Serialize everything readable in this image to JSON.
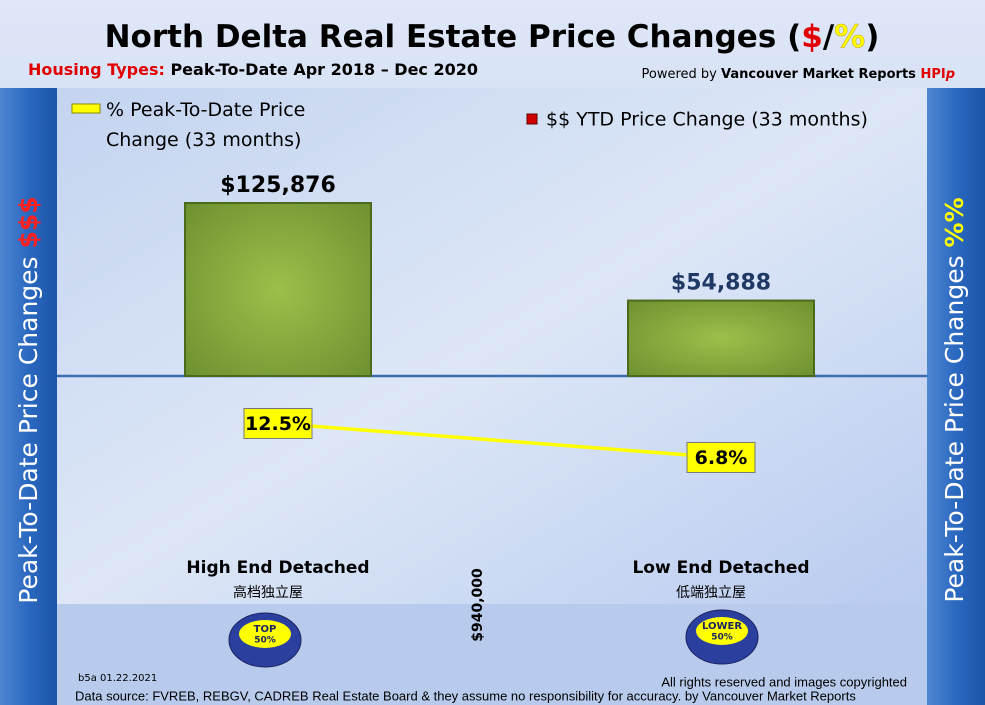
{
  "chart_data": {
    "type": "bar",
    "title_parts": [
      "North Delta Real Estate Price Changes (",
      "$",
      "/",
      "%",
      ")"
    ],
    "subtitle_parts": [
      "Housing Types:",
      " Peak-To-Date Apr 2018 – Dec 2020"
    ],
    "credit_parts": [
      "Powered by ",
      "Vancouver Market Reports ",
      "HPI",
      "p"
    ],
    "left_axis_label_parts": [
      "Peak-To-Date Price Changes ",
      "$$$"
    ],
    "right_axis_label_parts": [
      "Peak-To-Date  Price  Changes ",
      "%%"
    ],
    "categories": [
      "High End Detached",
      "Low End Detached"
    ],
    "category_sublabels": [
      "高档独立屋",
      "低端独立屋"
    ],
    "badges": [
      [
        "TOP",
        "50%"
      ],
      [
        "LOWER",
        "50%"
      ]
    ],
    "divider_label": "$940,000",
    "series": [
      {
        "name": "$$ YTD Price Change (33 months)",
        "type": "bar",
        "color": "#8aac3c",
        "values": [
          125876,
          54888
        ],
        "value_labels": [
          "$125,876",
          "$54,888"
        ]
      },
      {
        "name": "% Peak-To-Date Price Change (33 months)",
        "type": "line",
        "color": "#ffff00",
        "values": [
          12.5,
          6.8
        ],
        "value_labels": [
          "12.5%",
          "6.8%"
        ]
      }
    ],
    "footer": {
      "code": "b5a 01.22.2021",
      "rights": "All rights reserved and  images copyrighted",
      "source": "Data source: FVREB, REBGV, CADREB Real Estate Board & they assume no responsibility for accuracy. by Vancouver Market Reports"
    }
  }
}
